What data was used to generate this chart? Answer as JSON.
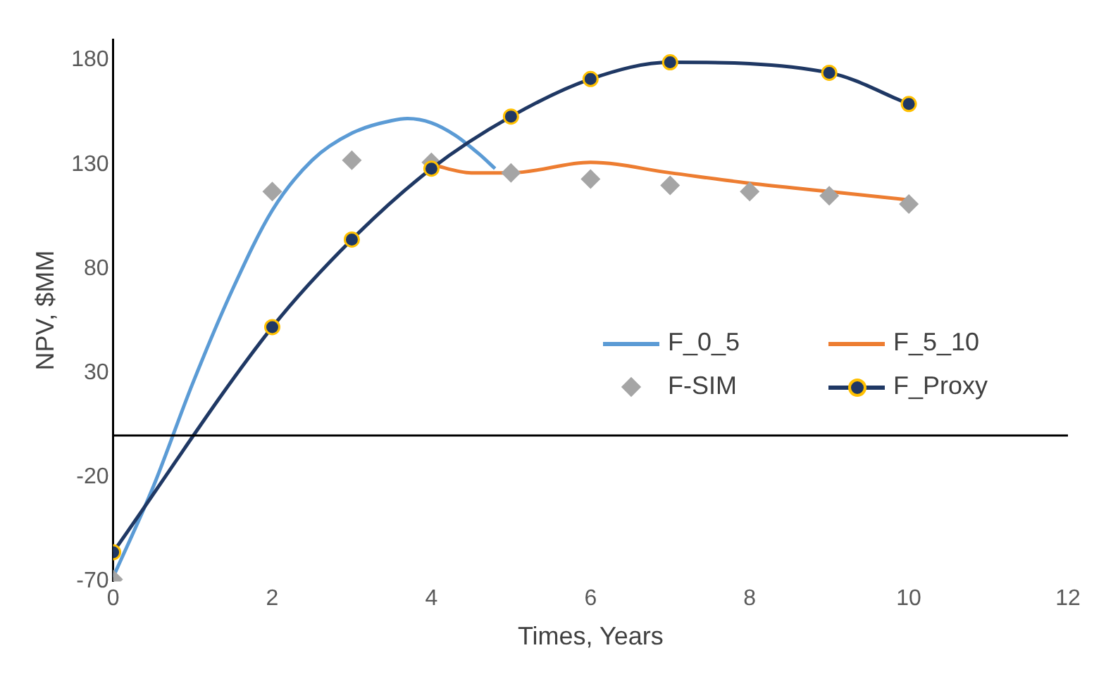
{
  "chart_data": {
    "type": "line",
    "xlabel": "Times, Years",
    "ylabel": "NPV, $MM",
    "xlim": [
      0,
      12
    ],
    "xticks": [
      0,
      2,
      4,
      6,
      8,
      10,
      12
    ],
    "ylim": [
      -70,
      190
    ],
    "yticks": [
      -70,
      -20,
      30,
      80,
      130,
      180
    ],
    "grid": false,
    "legend": "right",
    "ref_lines": [
      {
        "axis": "y",
        "value": 0,
        "color": "#000000"
      }
    ],
    "series": [
      {
        "name": "F_0_5",
        "type": "line",
        "marker": "none",
        "color": "#5b9bd5",
        "x": [
          0,
          0.5,
          1,
          1.5,
          2,
          2.5,
          3,
          3.5,
          3.7,
          4,
          4.3,
          4.6,
          4.8
        ],
        "values": [
          -68,
          -25,
          25,
          70,
          108,
          132,
          145,
          151,
          152,
          150,
          144,
          135,
          128
        ]
      },
      {
        "name": "F_5_10",
        "type": "line",
        "marker": "none",
        "color": "#ed7d31",
        "x": [
          4,
          4.5,
          5,
          6,
          7,
          8,
          9,
          10
        ],
        "values": [
          130,
          126,
          126,
          131,
          126,
          121,
          117,
          113
        ]
      },
      {
        "name": "F-SIM",
        "type": "scatter",
        "marker": "diamond",
        "color": "#a5a5a5",
        "x": [
          0,
          2,
          3,
          4,
          5,
          6,
          7,
          8,
          9,
          10
        ],
        "values": [
          -69,
          117,
          132,
          131,
          126,
          123,
          120,
          117,
          115,
          111
        ]
      },
      {
        "name": "F_Proxy",
        "type": "line",
        "marker": "circle",
        "color": "#1f3864",
        "x": [
          0,
          2,
          3,
          4,
          5,
          6,
          7,
          9,
          10
        ],
        "values": [
          -56,
          52,
          94,
          128,
          153,
          171,
          179,
          174,
          159
        ]
      }
    ]
  }
}
